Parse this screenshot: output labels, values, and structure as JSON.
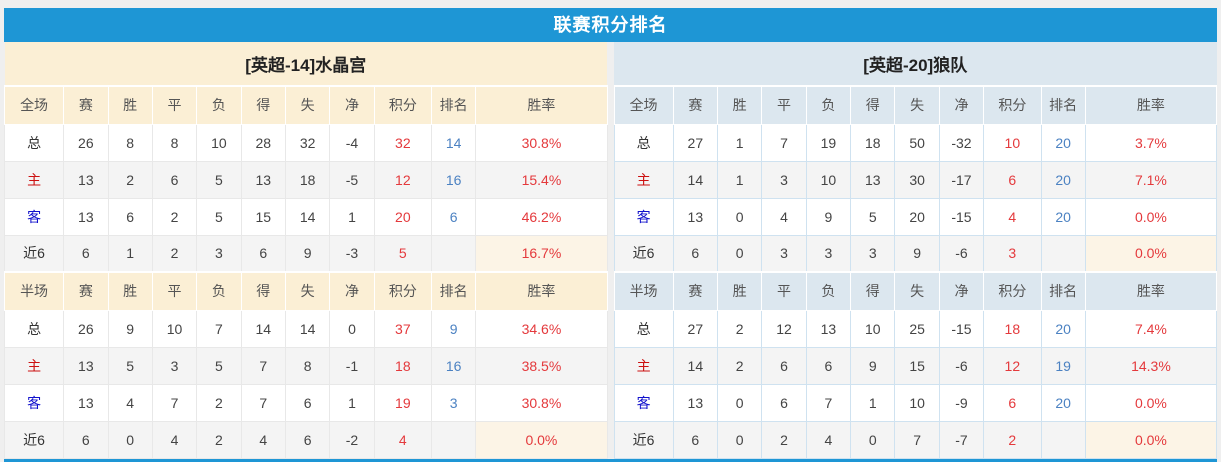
{
  "title": "联赛积分排名",
  "colors": {
    "accent": "#1E96D5",
    "left_header_bg": "#FBEFD5",
    "right_header_bg": "#DCE7EF",
    "points_color": "#E4393C",
    "rank_color": "#4C82C2",
    "home_label_color": "#CC1111",
    "away_label_color": "#1111CC"
  },
  "columns": [
    "赛",
    "胜",
    "平",
    "负",
    "得",
    "失",
    "净",
    "积分",
    "排名",
    "胜率"
  ],
  "full_section_label": "全场",
  "half_section_label": "半场",
  "teams": [
    {
      "name": "[英超-14]水晶宫",
      "theme": "cream",
      "full": [
        {
          "label": "总",
          "type": "total",
          "stats": [
            "26",
            "8",
            "8",
            "10",
            "28",
            "32",
            "-4"
          ],
          "points": "32",
          "rank": "14",
          "winrate": "30.8%",
          "highlight": false
        },
        {
          "label": "主",
          "type": "home",
          "stats": [
            "13",
            "2",
            "6",
            "5",
            "13",
            "18",
            "-5"
          ],
          "points": "12",
          "rank": "16",
          "winrate": "15.4%",
          "highlight": false
        },
        {
          "label": "客",
          "type": "away",
          "stats": [
            "13",
            "6",
            "2",
            "5",
            "15",
            "14",
            "1"
          ],
          "points": "20",
          "rank": "6",
          "winrate": "46.2%",
          "highlight": false
        },
        {
          "label": "近6",
          "type": "last6",
          "stats": [
            "6",
            "1",
            "2",
            "3",
            "6",
            "9",
            "-3"
          ],
          "points": "5",
          "rank": "",
          "winrate": "16.7%",
          "highlight": true
        }
      ],
      "half": [
        {
          "label": "总",
          "type": "total",
          "stats": [
            "26",
            "9",
            "10",
            "7",
            "14",
            "14",
            "0"
          ],
          "points": "37",
          "rank": "9",
          "winrate": "34.6%",
          "highlight": false
        },
        {
          "label": "主",
          "type": "home",
          "stats": [
            "13",
            "5",
            "3",
            "5",
            "7",
            "8",
            "-1"
          ],
          "points": "18",
          "rank": "16",
          "winrate": "38.5%",
          "highlight": false
        },
        {
          "label": "客",
          "type": "away",
          "stats": [
            "13",
            "4",
            "7",
            "2",
            "7",
            "6",
            "1"
          ],
          "points": "19",
          "rank": "3",
          "winrate": "30.8%",
          "highlight": false
        },
        {
          "label": "近6",
          "type": "last6",
          "stats": [
            "6",
            "0",
            "4",
            "2",
            "4",
            "6",
            "-2"
          ],
          "points": "4",
          "rank": "",
          "winrate": "0.0%",
          "highlight": true
        }
      ]
    },
    {
      "name": "[英超-20]狼队",
      "theme": "blue",
      "full": [
        {
          "label": "总",
          "type": "total",
          "stats": [
            "27",
            "1",
            "7",
            "19",
            "18",
            "50",
            "-32"
          ],
          "points": "10",
          "rank": "20",
          "winrate": "3.7%",
          "highlight": false
        },
        {
          "label": "主",
          "type": "home",
          "stats": [
            "14",
            "1",
            "3",
            "10",
            "13",
            "30",
            "-17"
          ],
          "points": "6",
          "rank": "20",
          "winrate": "7.1%",
          "highlight": false
        },
        {
          "label": "客",
          "type": "away",
          "stats": [
            "13",
            "0",
            "4",
            "9",
            "5",
            "20",
            "-15"
          ],
          "points": "4",
          "rank": "20",
          "winrate": "0.0%",
          "highlight": false
        },
        {
          "label": "近6",
          "type": "last6",
          "stats": [
            "6",
            "0",
            "3",
            "3",
            "3",
            "9",
            "-6"
          ],
          "points": "3",
          "rank": "",
          "winrate": "0.0%",
          "highlight": true
        }
      ],
      "half": [
        {
          "label": "总",
          "type": "total",
          "stats": [
            "27",
            "2",
            "12",
            "13",
            "10",
            "25",
            "-15"
          ],
          "points": "18",
          "rank": "20",
          "winrate": "7.4%",
          "highlight": false
        },
        {
          "label": "主",
          "type": "home",
          "stats": [
            "14",
            "2",
            "6",
            "6",
            "9",
            "15",
            "-6"
          ],
          "points": "12",
          "rank": "19",
          "winrate": "14.3%",
          "highlight": false
        },
        {
          "label": "客",
          "type": "away",
          "stats": [
            "13",
            "0",
            "6",
            "7",
            "1",
            "10",
            "-9"
          ],
          "points": "6",
          "rank": "20",
          "winrate": "0.0%",
          "highlight": false
        },
        {
          "label": "近6",
          "type": "last6",
          "stats": [
            "6",
            "0",
            "2",
            "4",
            "0",
            "7",
            "-7"
          ],
          "points": "2",
          "rank": "",
          "winrate": "0.0%",
          "highlight": true
        }
      ]
    }
  ]
}
